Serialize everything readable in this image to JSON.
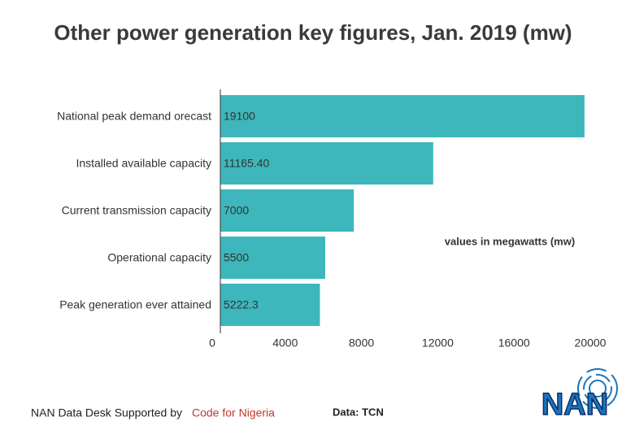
{
  "chart_data": {
    "type": "bar",
    "orientation": "horizontal",
    "title": "Other power generation key figures, Jan. 2019 (mw)",
    "categories": [
      "National peak demand orecast",
      "Installed available capacity",
      "Current transmission capacity",
      "Operational capacity",
      "Peak generation ever attained"
    ],
    "values": [
      19100,
      11165.4,
      7000,
      5500,
      5222.3
    ],
    "value_labels": [
      "19100",
      "11165.40",
      "7000",
      "5500",
      "5222.3"
    ],
    "color": "#3db7bb",
    "xlim": [
      0,
      20000
    ],
    "xticks": [
      0,
      4000,
      8000,
      12000,
      16000,
      20000
    ],
    "grid": false,
    "annotation": "values in megawatts (mw)"
  },
  "footer": {
    "credit": "NAN Data Desk Supported by",
    "partner": "Code for Nigeria",
    "source": "Data: TCN",
    "logo": "NAN"
  }
}
